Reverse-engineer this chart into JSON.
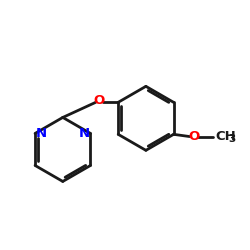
{
  "background_color": "#ffffff",
  "bond_color": "#1a1a1a",
  "N_color": "#0000ff",
  "O_color": "#ff0000",
  "linewidth": 2.0,
  "dbo": 0.055,
  "figsize": [
    2.5,
    2.5
  ],
  "dpi": 100,
  "xlim": [
    0.0,
    5.5
  ],
  "ylim": [
    0.5,
    5.0
  ]
}
